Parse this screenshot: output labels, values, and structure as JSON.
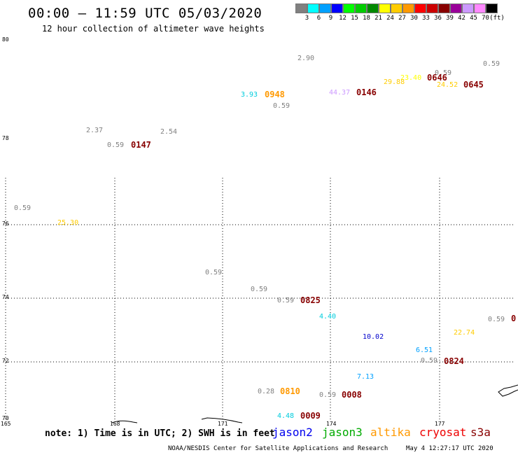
{
  "title": "00:00 – 11:59 UTC 05/03/2020",
  "subtitle": "12 hour collection of altimeter wave heights",
  "legend": {
    "unit": "(ft)",
    "items": [
      {
        "label": "3",
        "color": "#808080"
      },
      {
        "label": "6",
        "color": "#00ffff"
      },
      {
        "label": "9",
        "color": "#00a0ff"
      },
      {
        "label": "12",
        "color": "#0000ff"
      },
      {
        "label": "15",
        "color": "#00ff00"
      },
      {
        "label": "18",
        "color": "#00cc00"
      },
      {
        "label": "21",
        "color": "#008800"
      },
      {
        "label": "24",
        "color": "#ffff00"
      },
      {
        "label": "27",
        "color": "#ffcc00"
      },
      {
        "label": "30",
        "color": "#ff9900"
      },
      {
        "label": "33",
        "color": "#ff0000"
      },
      {
        "label": "36",
        "color": "#cc0000"
      },
      {
        "label": "39",
        "color": "#880000"
      },
      {
        "label": "42",
        "color": "#990099"
      },
      {
        "label": "45",
        "color": "#cc99ff"
      },
      {
        "label": "70",
        "color": "#ff88ff"
      },
      {
        "label": "",
        "color": "#000000"
      }
    ]
  },
  "axes": {
    "lat_ticks": [
      "80",
      "78",
      "76",
      "74",
      "72",
      "70"
    ],
    "lon_ticks": [
      "165",
      "168",
      "171",
      "174",
      "177"
    ]
  },
  "swh_labels": [
    {
      "text": "2.90",
      "color": "#808080"
    },
    {
      "text": "0.59",
      "color": "#808080"
    },
    {
      "text": "0.59",
      "color": "#808080"
    },
    {
      "text": "23.40",
      "color": "#ffff00"
    },
    {
      "text": "29.88",
      "color": "#ffcc00"
    },
    {
      "text": "24.52",
      "color": "#ffcc00"
    },
    {
      "text": "44.37",
      "color": "#cc99ff"
    },
    {
      "text": "3.93",
      "color": "#00ccdd"
    },
    {
      "text": "0.59",
      "color": "#808080"
    },
    {
      "text": "2.37",
      "color": "#808080"
    },
    {
      "text": "2.54",
      "color": "#808080"
    },
    {
      "text": "0.59",
      "color": "#808080"
    },
    {
      "text": "0.59",
      "color": "#808080"
    },
    {
      "text": "25.30",
      "color": "#ffcc00"
    },
    {
      "text": "0.59",
      "color": "#808080"
    },
    {
      "text": "0.59",
      "color": "#808080"
    },
    {
      "text": "0.59",
      "color": "#808080"
    },
    {
      "text": "4.40",
      "color": "#00ccdd"
    },
    {
      "text": "0.59",
      "color": "#808080"
    },
    {
      "text": "22.74",
      "color": "#ffcc00"
    },
    {
      "text": "10.02",
      "color": "#0000cc"
    },
    {
      "text": "6.51",
      "color": "#00a0ff"
    },
    {
      "text": "0.59",
      "color": "#808080"
    },
    {
      "text": "7.13",
      "color": "#00a0ff"
    },
    {
      "text": "0.28",
      "color": "#808080"
    },
    {
      "text": "0.59",
      "color": "#808080"
    },
    {
      "text": "4.48",
      "color": "#00ccdd"
    }
  ],
  "time_labels": [
    {
      "text": "0646",
      "color": "#880000"
    },
    {
      "text": "0645",
      "color": "#880000"
    },
    {
      "text": "0146",
      "color": "#880000"
    },
    {
      "text": "0948",
      "color": "#ff9900"
    },
    {
      "text": "0147",
      "color": "#880000"
    },
    {
      "text": "0825",
      "color": "#880000"
    },
    {
      "text": "0",
      "color": "#880000"
    },
    {
      "text": "0824",
      "color": "#880000"
    },
    {
      "text": "0810",
      "color": "#ff9900"
    },
    {
      "text": "0008",
      "color": "#880000"
    },
    {
      "text": "0009",
      "color": "#880000"
    }
  ],
  "note": "note: 1) Time is in UTC; 2) SWH is in feet",
  "satellites": [
    {
      "name": "jason2",
      "color": "#0000ee"
    },
    {
      "name": "jason3",
      "color": "#00aa00"
    },
    {
      "name": "altika",
      "color": "#ff9900"
    },
    {
      "name": "cryosat",
      "color": "#ee0000"
    },
    {
      "name": "s3a",
      "color": "#880000"
    }
  ],
  "credit": "NOAA/NESDIS Center for Satellite Applications and Research",
  "timestamp": "May  4 12:27:17 UTC 2020"
}
